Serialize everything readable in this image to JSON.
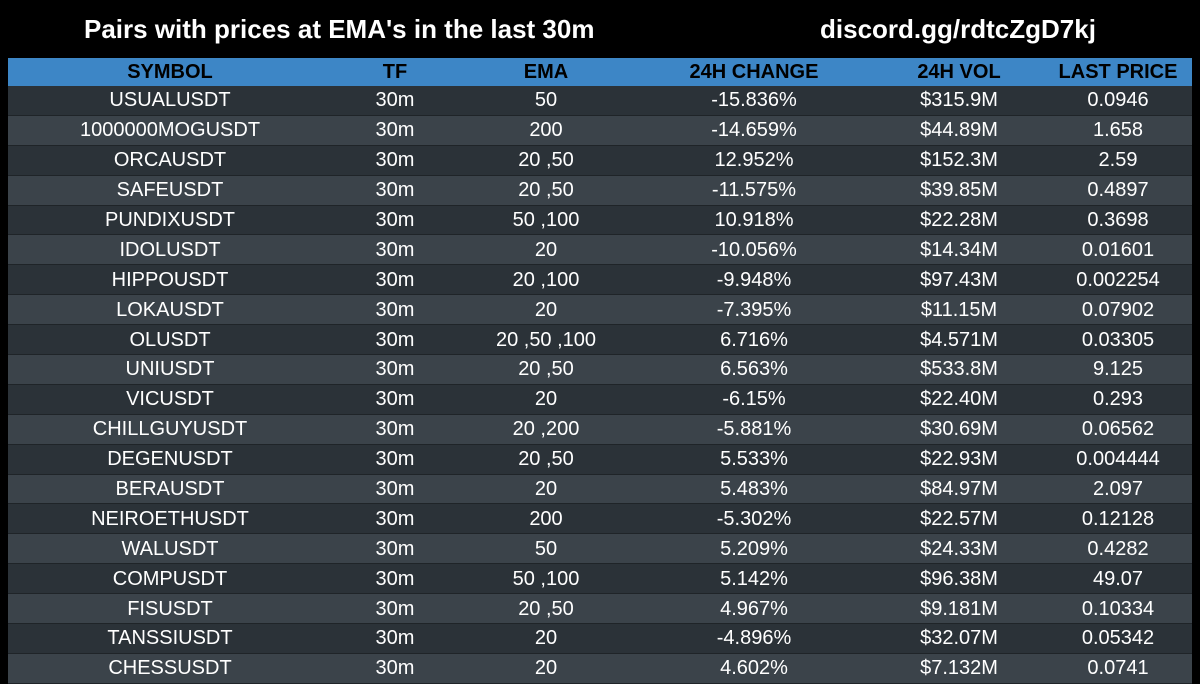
{
  "header": {
    "title": "Pairs with prices at EMA's in the last 30m",
    "discord": "discord.gg/rdtcZgD7kj"
  },
  "colors": {
    "header_bar": "#3d86c6",
    "row_dark": "#2b3238",
    "row_light": "#3b434a",
    "background": "#000000"
  },
  "table": {
    "columns": [
      "SYMBOL",
      "TF",
      "EMA",
      "24H CHANGE",
      "24H VOL",
      "LAST PRICE"
    ],
    "rows": [
      [
        "USUALUSDT",
        "30m",
        "50",
        "-15.836%",
        "$315.9M",
        "0.0946"
      ],
      [
        "1000000MOGUSDT",
        "30m",
        "200",
        "-14.659%",
        "$44.89M",
        "1.658"
      ],
      [
        "ORCAUSDT",
        "30m",
        "20 ,50",
        "12.952%",
        "$152.3M",
        "2.59"
      ],
      [
        "SAFEUSDT",
        "30m",
        "20 ,50",
        "-11.575%",
        "$39.85M",
        "0.4897"
      ],
      [
        "PUNDIXUSDT",
        "30m",
        "50 ,100",
        "10.918%",
        "$22.28M",
        "0.3698"
      ],
      [
        "IDOLUSDT",
        "30m",
        "20",
        "-10.056%",
        "$14.34M",
        "0.01601"
      ],
      [
        "HIPPOUSDT",
        "30m",
        "20 ,100",
        "-9.948%",
        "$97.43M",
        "0.002254"
      ],
      [
        "LOKAUSDT",
        "30m",
        "20",
        "-7.395%",
        "$11.15M",
        "0.07902"
      ],
      [
        "OLUSDT",
        "30m",
        "20 ,50 ,100",
        "6.716%",
        "$4.571M",
        "0.03305"
      ],
      [
        "UNIUSDT",
        "30m",
        "20 ,50",
        "6.563%",
        "$533.8M",
        "9.125"
      ],
      [
        "VICUSDT",
        "30m",
        "20",
        "-6.15%",
        "$22.40M",
        "0.293"
      ],
      [
        "CHILLGUYUSDT",
        "30m",
        "20 ,200",
        "-5.881%",
        "$30.69M",
        "0.06562"
      ],
      [
        "DEGENUSDT",
        "30m",
        "20 ,50",
        "5.533%",
        "$22.93M",
        "0.004444"
      ],
      [
        "BERAUSDT",
        "30m",
        "20",
        "5.483%",
        "$84.97M",
        "2.097"
      ],
      [
        "NEIROETHUSDT",
        "30m",
        "200",
        "-5.302%",
        "$22.57M",
        "0.12128"
      ],
      [
        "WALUSDT",
        "30m",
        "50",
        "5.209%",
        "$24.33M",
        "0.4282"
      ],
      [
        "COMPUSDT",
        "30m",
        "50 ,100",
        "5.142%",
        "$96.38M",
        "49.07"
      ],
      [
        "FISUSDT",
        "30m",
        "20 ,50",
        "4.967%",
        "$9.181M",
        "0.10334"
      ],
      [
        "TANSSIUSDT",
        "30m",
        "20",
        "-4.896%",
        "$32.07M",
        "0.05342"
      ],
      [
        "CHESSUSDT",
        "30m",
        "20",
        "4.602%",
        "$7.132M",
        "0.0741"
      ]
    ]
  }
}
